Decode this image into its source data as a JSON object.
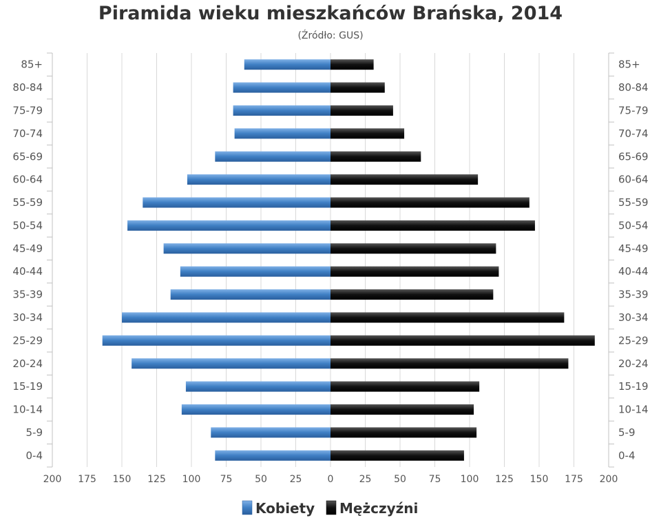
{
  "title": "Piramida wieku mieszkańców Brańska, 2014",
  "subtitle": "(Źródło: GUS)",
  "chart_data": {
    "type": "bar",
    "orientation": "horizontal-population-pyramid",
    "categories": [
      "85+",
      "80-84",
      "75-79",
      "70-74",
      "65-69",
      "60-64",
      "55-59",
      "50-54",
      "45-49",
      "40-44",
      "35-39",
      "30-34",
      "25-29",
      "20-24",
      "15-19",
      "10-14",
      "5-9",
      "0-4"
    ],
    "series": [
      {
        "name": "Kobiety",
        "color": "#3f7fc4",
        "values": [
          62,
          70,
          70,
          69,
          83,
          103,
          135,
          146,
          120,
          108,
          115,
          150,
          164,
          143,
          104,
          107,
          86,
          83
        ]
      },
      {
        "name": "Mężczyźni",
        "color": "#111111",
        "values": [
          31,
          39,
          45,
          53,
          65,
          106,
          143,
          147,
          119,
          121,
          117,
          168,
          190,
          171,
          107,
          103,
          105,
          96
        ]
      }
    ],
    "x_ticks": [
      "200",
      "175",
      "150",
      "125",
      "100",
      "75",
      "50",
      "25",
      "0",
      "25",
      "50",
      "75",
      "100",
      "125",
      "150",
      "175",
      "200"
    ],
    "xlim": [
      -200,
      200
    ],
    "grid": true,
    "legend_position": "bottom-center"
  }
}
